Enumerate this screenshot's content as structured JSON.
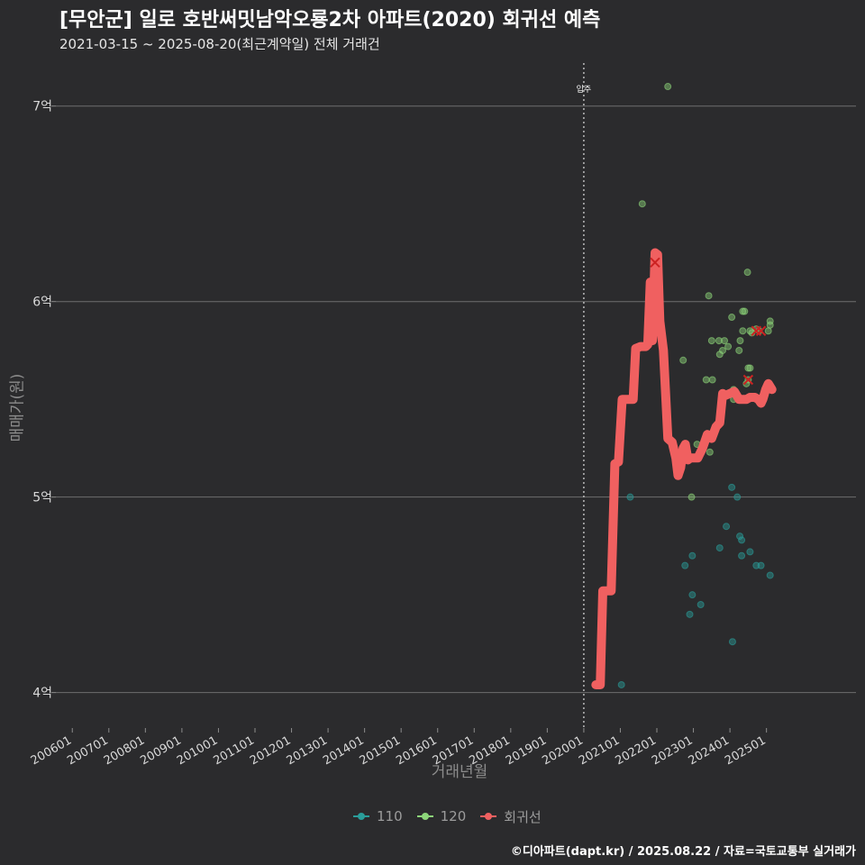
{
  "header": {
    "title": "[무안군] 일로 호반써밋남악오룡2차 아파트(2020) 회귀선 예측",
    "subtitle": "2021-03-15 ~ 2025-08-20(최근계약일) 전체 거래건"
  },
  "caption": "©디아파트(dapt.kr) / 2025.08.22 / 자료=국토교통부 실거래가",
  "chart_data": {
    "type": "scatter",
    "title": "[무안군] 일로 호반써밋남악오룡2차 아파트(2020) 회귀선 예측",
    "xlabel": "거래년월",
    "ylabel": "매매가(원)",
    "x_domain": [
      2005.55,
      2027.45
    ],
    "ylim": [
      3.92,
      7.22
    ],
    "y_ticks": [
      4,
      5,
      6,
      7
    ],
    "y_tick_labels": [
      "4억",
      "5억",
      "6억",
      "7억"
    ],
    "x_ticks": [
      2006,
      2007,
      2008,
      2009,
      2010,
      2011,
      2012,
      2013,
      2014,
      2015,
      2016,
      2017,
      2018,
      2019,
      2020,
      2021,
      2022,
      2023,
      2024,
      2025
    ],
    "x_tick_labels": [
      "200601",
      "200701",
      "200801",
      "200901",
      "201001",
      "201101",
      "201201",
      "201301",
      "201401",
      "201501",
      "201601",
      "201701",
      "201801",
      "201901",
      "202001",
      "202101",
      "202201",
      "202301",
      "202401",
      "202501"
    ],
    "annotation": {
      "label": "입주",
      "x": 2020.0
    },
    "colors": {
      "110": "#2a9d9a",
      "120": "#8dd67a",
      "regression": "#f06060",
      "marker": "#cc2222"
    },
    "series": [
      {
        "name": "110",
        "points": [
          [
            2021.03,
            4.04
          ],
          [
            2021.27,
            5.0
          ],
          [
            2022.77,
            4.65
          ],
          [
            2022.9,
            4.4
          ],
          [
            2022.97,
            4.5
          ],
          [
            2022.97,
            4.7
          ],
          [
            2023.2,
            4.45
          ],
          [
            2023.72,
            4.74
          ],
          [
            2023.9,
            4.85
          ],
          [
            2024.07,
            4.26
          ],
          [
            2024.27,
            4.8
          ],
          [
            2024.32,
            4.78
          ],
          [
            2024.32,
            4.7
          ],
          [
            2024.55,
            4.72
          ],
          [
            2024.72,
            4.65
          ],
          [
            2024.85,
            4.65
          ],
          [
            2025.1,
            4.6
          ],
          [
            2024.2,
            5.0
          ],
          [
            2024.05,
            5.05
          ]
        ]
      },
      {
        "name": "120",
        "points": [
          [
            2021.6,
            6.5
          ],
          [
            2022.3,
            7.1
          ],
          [
            2022.72,
            5.7
          ],
          [
            2022.95,
            5.0
          ],
          [
            2023.1,
            5.27
          ],
          [
            2023.35,
            5.6
          ],
          [
            2023.42,
            6.03
          ],
          [
            2023.45,
            5.23
          ],
          [
            2023.5,
            5.8
          ],
          [
            2023.52,
            5.6
          ],
          [
            2023.7,
            5.8
          ],
          [
            2023.72,
            5.73
          ],
          [
            2023.8,
            5.75
          ],
          [
            2023.85,
            5.8
          ],
          [
            2023.95,
            5.77
          ],
          [
            2024.05,
            5.92
          ],
          [
            2024.1,
            5.55
          ],
          [
            2024.1,
            5.5
          ],
          [
            2024.25,
            5.75
          ],
          [
            2024.28,
            5.8
          ],
          [
            2024.35,
            5.95
          ],
          [
            2024.35,
            5.85
          ],
          [
            2024.4,
            5.95
          ],
          [
            2024.48,
            6.15
          ],
          [
            2024.5,
            5.66
          ],
          [
            2024.55,
            5.66
          ],
          [
            2024.55,
            5.85
          ],
          [
            2024.6,
            5.84
          ],
          [
            2024.72,
            5.86
          ],
          [
            2024.8,
            5.85
          ],
          [
            2025.05,
            5.85
          ],
          [
            2025.1,
            5.88
          ],
          [
            2025.1,
            5.9
          ],
          [
            2024.5,
            5.6
          ],
          [
            2024.45,
            5.58
          ]
        ]
      }
    ],
    "regression": {
      "name": "회귀선",
      "points": [
        [
          2020.33,
          4.04
        ],
        [
          2020.45,
          4.04
        ],
        [
          2020.52,
          4.52
        ],
        [
          2020.75,
          4.52
        ],
        [
          2020.85,
          5.17
        ],
        [
          2020.95,
          5.18
        ],
        [
          2021.05,
          5.5
        ],
        [
          2021.12,
          5.5
        ],
        [
          2021.2,
          5.5
        ],
        [
          2021.35,
          5.5
        ],
        [
          2021.42,
          5.76
        ],
        [
          2021.55,
          5.77
        ],
        [
          2021.7,
          5.77
        ],
        [
          2021.75,
          5.78
        ],
        [
          2021.82,
          6.1
        ],
        [
          2021.88,
          5.8
        ],
        [
          2021.95,
          6.25
        ],
        [
          2022.02,
          6.24
        ],
        [
          2022.08,
          5.9
        ],
        [
          2022.18,
          5.75
        ],
        [
          2022.3,
          5.3
        ],
        [
          2022.42,
          5.28
        ],
        [
          2022.52,
          5.2
        ],
        [
          2022.58,
          5.11
        ],
        [
          2022.65,
          5.15
        ],
        [
          2022.72,
          5.25
        ],
        [
          2022.78,
          5.27
        ],
        [
          2022.85,
          5.19
        ],
        [
          2022.92,
          5.2
        ],
        [
          2023.0,
          5.2
        ],
        [
          2023.12,
          5.2
        ],
        [
          2023.25,
          5.25
        ],
        [
          2023.38,
          5.32
        ],
        [
          2023.5,
          5.3
        ],
        [
          2023.62,
          5.36
        ],
        [
          2023.72,
          5.38
        ],
        [
          2023.8,
          5.53
        ],
        [
          2023.88,
          5.52
        ],
        [
          2024.0,
          5.53
        ],
        [
          2024.12,
          5.54
        ],
        [
          2024.25,
          5.5
        ],
        [
          2024.45,
          5.5
        ],
        [
          2024.55,
          5.51
        ],
        [
          2024.68,
          5.51
        ],
        [
          2024.78,
          5.5
        ],
        [
          2024.85,
          5.48
        ],
        [
          2024.9,
          5.5
        ],
        [
          2024.98,
          5.55
        ],
        [
          2025.05,
          5.58
        ],
        [
          2025.15,
          5.55
        ]
      ]
    },
    "markers": [
      [
        2021.95,
        6.2
      ],
      [
        2024.85,
        5.85
      ],
      [
        2024.72,
        5.85
      ],
      [
        2024.5,
        5.6
      ]
    ],
    "legend": [
      {
        "key": "110",
        "label": "110"
      },
      {
        "key": "120",
        "label": "120"
      },
      {
        "key": "regression",
        "label": "회귀선"
      }
    ],
    "legend_position": "bottom"
  }
}
